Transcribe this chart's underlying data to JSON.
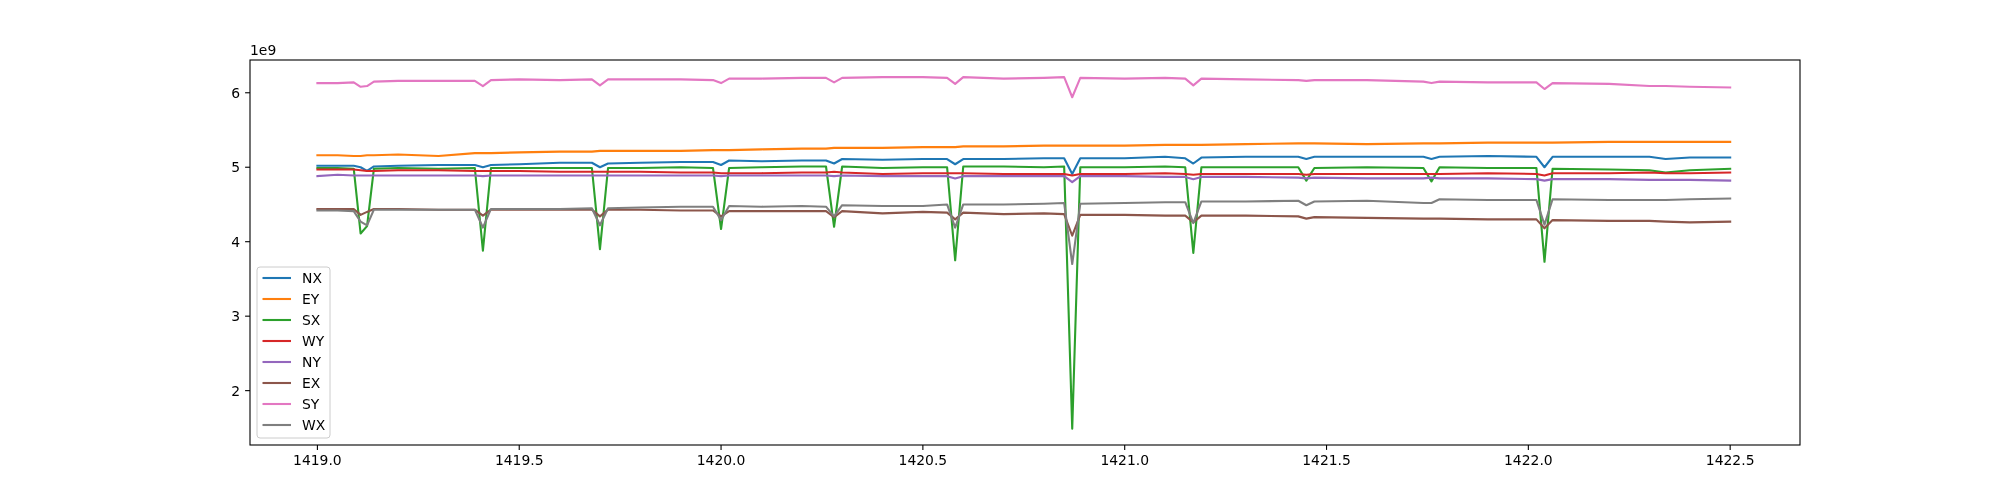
{
  "chart_data": {
    "type": "line",
    "annotations": [
      "1e9"
    ],
    "x": [
      1419.0,
      1419.05,
      1419.09,
      1419.107,
      1419.123,
      1419.14,
      1419.2,
      1419.3,
      1419.39,
      1419.41,
      1419.43,
      1419.5,
      1419.6,
      1419.68,
      1419.7,
      1419.72,
      1419.8,
      1419.9,
      1419.98,
      1420.0,
      1420.02,
      1420.1,
      1420.2,
      1420.26,
      1420.28,
      1420.3,
      1420.4,
      1420.5,
      1420.56,
      1420.58,
      1420.6,
      1420.7,
      1420.8,
      1420.85,
      1420.87,
      1420.89,
      1421.0,
      1421.1,
      1421.15,
      1421.17,
      1421.19,
      1421.3,
      1421.43,
      1421.45,
      1421.47,
      1421.6,
      1421.74,
      1421.76,
      1421.78,
      1421.9,
      1422.02,
      1422.04,
      1422.06,
      1422.2,
      1422.3,
      1422.34,
      1422.4,
      1422.5
    ],
    "series": [
      {
        "name": "NX",
        "color": "#1f77b4",
        "values": [
          5.02,
          5.02,
          5.02,
          5.0,
          4.95,
          5.01,
          5.02,
          5.03,
          5.03,
          5.0,
          5.03,
          5.04,
          5.06,
          5.06,
          5.0,
          5.05,
          5.06,
          5.07,
          5.07,
          5.03,
          5.09,
          5.08,
          5.09,
          5.09,
          5.05,
          5.11,
          5.1,
          5.11,
          5.11,
          5.04,
          5.11,
          5.11,
          5.12,
          5.12,
          4.91,
          5.12,
          5.12,
          5.14,
          5.12,
          5.05,
          5.13,
          5.14,
          5.14,
          5.11,
          5.14,
          5.14,
          5.14,
          5.11,
          5.14,
          5.15,
          5.14,
          5.0,
          5.14,
          5.14,
          5.14,
          5.11,
          5.13,
          5.13
        ]
      },
      {
        "name": "EY",
        "color": "#ff7f0e",
        "values": [
          5.16,
          5.16,
          5.15,
          5.15,
          5.16,
          5.16,
          5.17,
          5.15,
          5.19,
          5.19,
          5.19,
          5.2,
          5.21,
          5.21,
          5.22,
          5.22,
          5.22,
          5.22,
          5.23,
          5.23,
          5.23,
          5.24,
          5.25,
          5.25,
          5.26,
          5.26,
          5.26,
          5.27,
          5.27,
          5.27,
          5.28,
          5.28,
          5.29,
          5.29,
          5.29,
          5.29,
          5.29,
          5.3,
          5.3,
          5.3,
          5.3,
          5.31,
          5.32,
          5.32,
          5.32,
          5.31,
          5.32,
          5.32,
          5.32,
          5.33,
          5.33,
          5.33,
          5.33,
          5.34,
          5.34,
          5.34,
          5.34,
          5.34
        ]
      },
      {
        "name": "SX",
        "color": "#2ca02c",
        "values": [
          4.99,
          4.99,
          4.98,
          4.11,
          4.21,
          4.98,
          4.99,
          4.98,
          4.99,
          3.88,
          4.99,
          4.99,
          4.99,
          4.99,
          3.9,
          4.99,
          4.99,
          5.0,
          4.99,
          4.17,
          4.99,
          5.0,
          5.01,
          5.01,
          4.2,
          5.01,
          4.99,
          5.0,
          5.0,
          3.75,
          5.01,
          5.01,
          5.0,
          5.01,
          1.49,
          5.0,
          5.0,
          5.01,
          5.0,
          3.85,
          5.0,
          5.0,
          5.0,
          4.82,
          4.99,
          5.0,
          4.99,
          4.81,
          5.0,
          4.99,
          4.99,
          3.73,
          4.98,
          4.97,
          4.96,
          4.93,
          4.96,
          4.98
        ]
      },
      {
        "name": "WY",
        "color": "#d62728",
        "values": [
          4.97,
          4.97,
          4.97,
          4.96,
          4.95,
          4.95,
          4.96,
          4.96,
          4.95,
          4.95,
          4.95,
          4.95,
          4.94,
          4.94,
          4.94,
          4.94,
          4.94,
          4.93,
          4.93,
          4.92,
          4.92,
          4.92,
          4.93,
          4.93,
          4.94,
          4.93,
          4.91,
          4.92,
          4.92,
          4.92,
          4.92,
          4.91,
          4.91,
          4.91,
          4.89,
          4.91,
          4.91,
          4.92,
          4.91,
          4.9,
          4.91,
          4.91,
          4.91,
          4.9,
          4.91,
          4.91,
          4.91,
          4.91,
          4.91,
          4.92,
          4.91,
          4.89,
          4.92,
          4.92,
          4.93,
          4.92,
          4.92,
          4.93
        ]
      },
      {
        "name": "NY",
        "color": "#9467bd",
        "values": [
          4.88,
          4.9,
          4.89,
          4.89,
          4.89,
          4.89,
          4.89,
          4.89,
          4.89,
          4.88,
          4.89,
          4.89,
          4.89,
          4.89,
          4.89,
          4.89,
          4.89,
          4.89,
          4.89,
          4.88,
          4.89,
          4.89,
          4.89,
          4.89,
          4.88,
          4.89,
          4.88,
          4.88,
          4.88,
          4.85,
          4.88,
          4.88,
          4.88,
          4.88,
          4.8,
          4.88,
          4.88,
          4.87,
          4.87,
          4.84,
          4.87,
          4.87,
          4.86,
          4.85,
          4.86,
          4.85,
          4.85,
          4.86,
          4.85,
          4.85,
          4.84,
          4.82,
          4.84,
          4.84,
          4.83,
          4.83,
          4.83,
          4.82
        ]
      },
      {
        "name": "EX",
        "color": "#8c564b",
        "values": [
          4.44,
          4.44,
          4.44,
          4.36,
          4.4,
          4.44,
          4.44,
          4.43,
          4.43,
          4.35,
          4.43,
          4.43,
          4.43,
          4.43,
          4.34,
          4.43,
          4.43,
          4.42,
          4.42,
          4.34,
          4.41,
          4.41,
          4.41,
          4.41,
          4.33,
          4.41,
          4.38,
          4.4,
          4.39,
          4.3,
          4.39,
          4.37,
          4.38,
          4.37,
          4.08,
          4.36,
          4.36,
          4.35,
          4.35,
          4.26,
          4.35,
          4.35,
          4.34,
          4.31,
          4.33,
          4.32,
          4.31,
          4.31,
          4.31,
          4.3,
          4.3,
          4.18,
          4.29,
          4.28,
          4.28,
          4.27,
          4.26,
          4.27
        ]
      },
      {
        "name": "SY",
        "color": "#e377c2",
        "values": [
          6.13,
          6.13,
          6.14,
          6.08,
          6.09,
          6.15,
          6.16,
          6.16,
          6.16,
          6.09,
          6.17,
          6.18,
          6.17,
          6.18,
          6.1,
          6.18,
          6.18,
          6.18,
          6.17,
          6.13,
          6.19,
          6.19,
          6.2,
          6.2,
          6.14,
          6.2,
          6.21,
          6.21,
          6.2,
          6.12,
          6.21,
          6.19,
          6.2,
          6.21,
          5.94,
          6.2,
          6.19,
          6.2,
          6.19,
          6.1,
          6.19,
          6.18,
          6.17,
          6.16,
          6.17,
          6.17,
          6.15,
          6.13,
          6.15,
          6.14,
          6.14,
          6.05,
          6.13,
          6.12,
          6.09,
          6.09,
          6.08,
          6.07
        ]
      },
      {
        "name": "WX",
        "color": "#7f7f7f",
        "values": [
          4.42,
          4.42,
          4.41,
          4.27,
          4.22,
          4.43,
          4.43,
          4.43,
          4.43,
          4.19,
          4.44,
          4.44,
          4.44,
          4.45,
          4.22,
          4.45,
          4.46,
          4.47,
          4.47,
          4.29,
          4.48,
          4.47,
          4.48,
          4.47,
          4.34,
          4.49,
          4.48,
          4.48,
          4.5,
          4.19,
          4.5,
          4.5,
          4.51,
          4.52,
          3.7,
          4.51,
          4.52,
          4.53,
          4.53,
          4.25,
          4.54,
          4.54,
          4.55,
          4.49,
          4.54,
          4.55,
          4.52,
          4.52,
          4.57,
          4.56,
          4.56,
          4.23,
          4.57,
          4.56,
          4.56,
          4.56,
          4.57,
          4.58
        ]
      }
    ],
    "xlim": [
      1418.833,
      1422.673
    ],
    "xticks": [
      {
        "value": 1419,
        "label": "1419.0"
      },
      1419.5,
      {
        "value": 1420,
        "label": "1420.0"
      },
      1420.5,
      {
        "value": 1421,
        "label": "1421.0"
      },
      1421.5,
      {
        "value": 1422,
        "label": "1422.0"
      },
      1422.5
    ],
    "ylim": [
      1.27,
      6.44
    ],
    "yticks": [
      2,
      3,
      4,
      5,
      6
    ],
    "legend": "bottom left"
  }
}
